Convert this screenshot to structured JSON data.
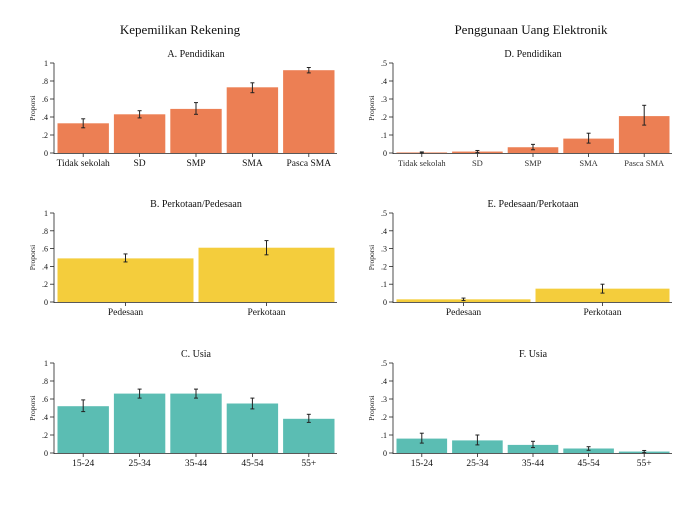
{
  "column_titles": {
    "left": "Kepemilikan Rekening",
    "right": "Penggunaan Uang Elektronik"
  },
  "colors": {
    "orange": "#ec7f54",
    "yellow": "#f4cd3c",
    "teal": "#5bbdb3"
  },
  "chart_data": [
    {
      "id": "A",
      "type": "bar",
      "title": "A. Pendidikan",
      "ylabel": "Proporsi",
      "ylim": [
        0,
        1
      ],
      "yticks": [
        "0",
        ".2",
        ".4",
        ".6",
        ".8",
        "1"
      ],
      "color": "orange",
      "categories": [
        "Tidak sekolah",
        "SD",
        "SMP",
        "SMA",
        "Pasca SMA"
      ],
      "values": [
        0.33,
        0.43,
        0.49,
        0.73,
        0.92
      ],
      "ci_low": [
        0.28,
        0.39,
        0.43,
        0.67,
        0.89
      ],
      "ci_high": [
        0.38,
        0.47,
        0.56,
        0.78,
        0.95
      ]
    },
    {
      "id": "D",
      "type": "bar",
      "title": "D. Pendidikan",
      "ylabel": "Proporsi",
      "ylim": [
        0,
        0.5
      ],
      "yticks": [
        "0",
        ".1",
        ".2",
        ".3",
        ".4",
        ".5"
      ],
      "color": "orange",
      "small_ticks": true,
      "categories": [
        "Tidak sekolah",
        "SD",
        "SMP",
        "SMA",
        "Pasca SMA"
      ],
      "values": [
        0.003,
        0.008,
        0.032,
        0.08,
        0.205
      ],
      "ci_low": [
        0.0,
        0.002,
        0.018,
        0.055,
        0.155
      ],
      "ci_high": [
        0.006,
        0.014,
        0.048,
        0.11,
        0.265
      ]
    },
    {
      "id": "B",
      "type": "bar",
      "title": "B. Perkotaan/Pedesaan",
      "ylabel": "Proporsi",
      "ylim": [
        0,
        1
      ],
      "yticks": [
        "0",
        ".2",
        ".4",
        ".6",
        ".8",
        "1"
      ],
      "color": "yellow",
      "categories": [
        "Pedesaan",
        "Perkotaan"
      ],
      "values": [
        0.49,
        0.61
      ],
      "ci_low": [
        0.45,
        0.53
      ],
      "ci_high": [
        0.54,
        0.69
      ]
    },
    {
      "id": "E",
      "type": "bar",
      "title": "E. Pedesaan/Perkotaan",
      "ylabel": "Proporsi",
      "ylim": [
        0,
        0.5
      ],
      "yticks": [
        "0",
        ".1",
        ".2",
        ".3",
        ".4",
        ".5"
      ],
      "color": "yellow",
      "categories": [
        "Pedesaan",
        "Perkotaan"
      ],
      "values": [
        0.015,
        0.075
      ],
      "ci_low": [
        0.008,
        0.05
      ],
      "ci_high": [
        0.022,
        0.1
      ]
    },
    {
      "id": "C",
      "type": "bar",
      "title": "C. Usia",
      "ylabel": "Proporsi",
      "ylim": [
        0,
        1
      ],
      "yticks": [
        "0",
        ".2",
        ".4",
        ".6",
        ".8",
        "1"
      ],
      "color": "teal",
      "categories": [
        "15-24",
        "25-34",
        "35-44",
        "45-54",
        "55+"
      ],
      "values": [
        0.52,
        0.66,
        0.66,
        0.55,
        0.38
      ],
      "ci_low": [
        0.46,
        0.61,
        0.61,
        0.49,
        0.34
      ],
      "ci_high": [
        0.59,
        0.71,
        0.71,
        0.61,
        0.43
      ]
    },
    {
      "id": "F",
      "type": "bar",
      "title": "F. Usia",
      "ylabel": "Proporsi",
      "ylim": [
        0,
        0.5
      ],
      "yticks": [
        "0",
        ".1",
        ".2",
        ".3",
        ".4",
        ".5"
      ],
      "color": "teal",
      "categories": [
        "15-24",
        "25-34",
        "35-44",
        "45-54",
        "55+"
      ],
      "values": [
        0.08,
        0.07,
        0.045,
        0.025,
        0.008
      ],
      "ci_low": [
        0.055,
        0.045,
        0.03,
        0.015,
        0.002
      ],
      "ci_high": [
        0.11,
        0.1,
        0.065,
        0.035,
        0.014
      ]
    }
  ]
}
